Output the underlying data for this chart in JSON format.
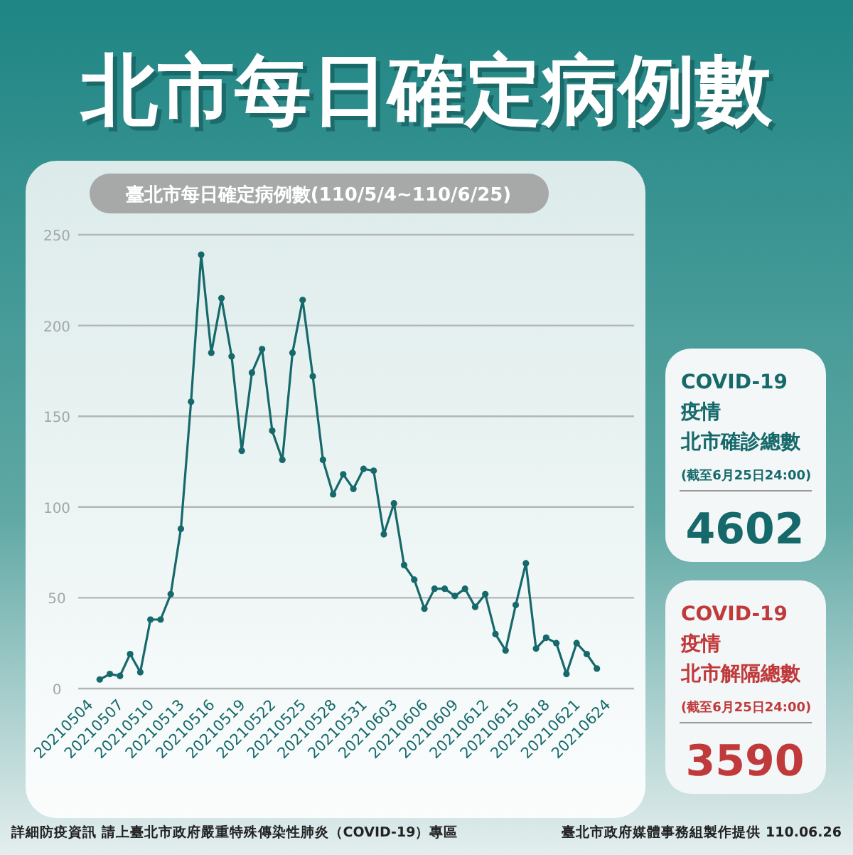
{
  "chart_data": [
    {
      "type": "line",
      "title": "北市每日確定病例數",
      "subtitle": "臺北市每日確定病例數(110/5/4~110/6/25)",
      "categories": [
        "20210504",
        null,
        null,
        "20210507",
        null,
        null,
        "20210510",
        null,
        null,
        "20210513",
        null,
        null,
        "20210516",
        null,
        null,
        "20210519",
        null,
        null,
        "20210522",
        null,
        null,
        "20210525",
        null,
        null,
        "20210528",
        null,
        null,
        "20210531",
        null,
        null,
        "20210603",
        null,
        null,
        "20210606",
        null,
        null,
        "20210609",
        null,
        null,
        "20210612",
        null,
        null,
        "20210615",
        null,
        null,
        "20210618",
        null,
        null,
        "20210621",
        null,
        null,
        "20210624"
      ],
      "series": [
        {
          "color": "#16696b",
          "values": [
            null,
            5,
            8,
            7,
            19,
            9,
            38,
            38,
            52,
            88,
            158,
            239,
            185,
            215,
            183,
            131,
            174,
            187,
            142,
            126,
            185,
            214,
            172,
            126,
            107,
            118,
            110,
            121,
            120,
            85,
            102,
            68,
            60,
            44,
            55,
            55,
            51,
            55,
            45,
            52,
            30,
            21,
            46,
            69,
            22,
            28,
            25,
            8,
            25,
            19,
            11,
            null
          ]
        }
      ],
      "ylim": [
        0,
        250
      ],
      "yticks": [
        0,
        50,
        100,
        150,
        200,
        250
      ],
      "grid": "y",
      "marker": "circle",
      "line_style": "solid",
      "annotations": [
        "詳細防疫資訊 請上臺北市政府嚴重特殊傳染性肺炎（COVID-19）專區",
        "臺北市政府媒體事務組製作提供 110.06.26"
      ]
    },
    {
      "type": "other",
      "color": "#16696b",
      "annotations": [
        "COVID-19",
        "疫情",
        "北市確診總數",
        "(截至6月25日24:00)",
        "4602"
      ]
    },
    {
      "type": "other",
      "color": "#c0393b",
      "annotations": [
        "COVID-19",
        "疫情",
        "北市解隔總數",
        "(截至6月25日24:00)",
        "3590"
      ]
    }
  ]
}
